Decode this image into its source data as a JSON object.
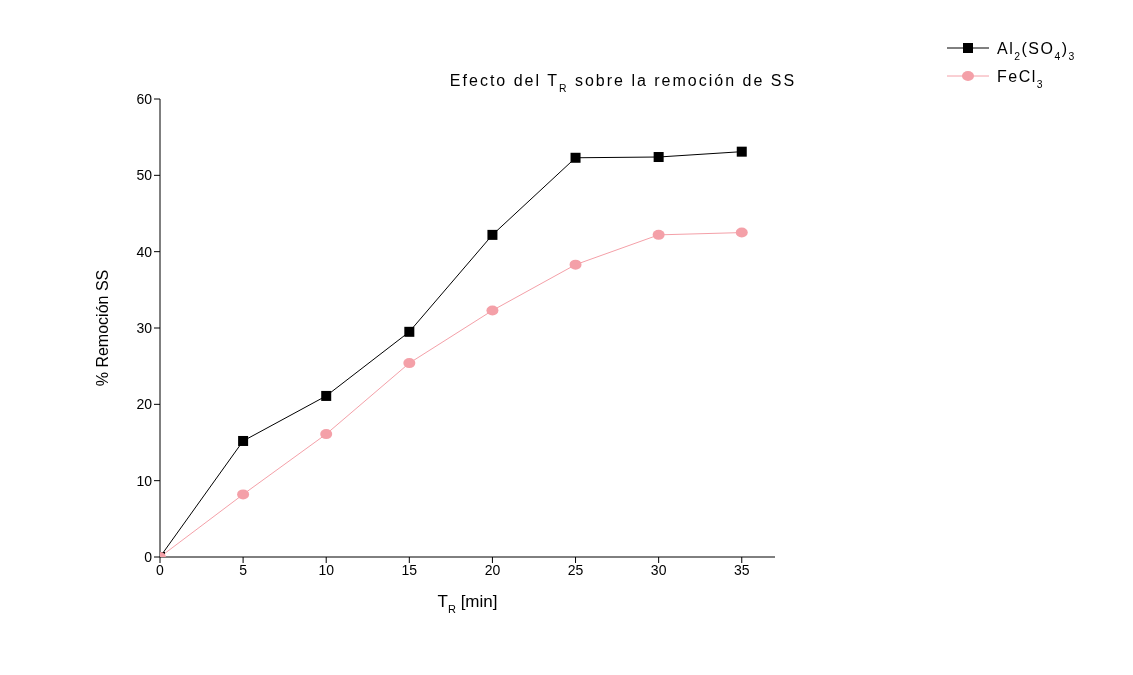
{
  "chart_data": {
    "type": "line",
    "title": "Efecto del T$_{R}$ sobre la remoción de SS",
    "xlabel": "T$_{R}$ [min]",
    "ylabel": "% Remoción SS",
    "xlim": [
      0,
      37
    ],
    "xticks": [
      0,
      5,
      10,
      15,
      20,
      25,
      30,
      35
    ],
    "ylim": [
      0,
      60
    ],
    "yticks": [
      0,
      10,
      20,
      30,
      40,
      50,
      60
    ],
    "grid": false,
    "legend": "top right",
    "series": [
      {
        "name": "Al$_{2}$(SO$_{4}$)$_{3}$",
        "color": "#000000",
        "marker": "square",
        "x": [
          0,
          5,
          10,
          15,
          20,
          25,
          30,
          35
        ],
        "values": [
          0,
          15.2,
          21.1,
          29.5,
          42.2,
          52.3,
          52.4,
          53.1
        ]
      },
      {
        "name": "FeCl$_{3}$",
        "color": "#f4a0a8",
        "marker": "circle",
        "x": [
          0,
          5,
          10,
          15,
          20,
          25,
          30,
          35
        ],
        "values": [
          0,
          8.2,
          16.1,
          25.4,
          32.3,
          38.3,
          42.2,
          42.5
        ]
      }
    ]
  }
}
